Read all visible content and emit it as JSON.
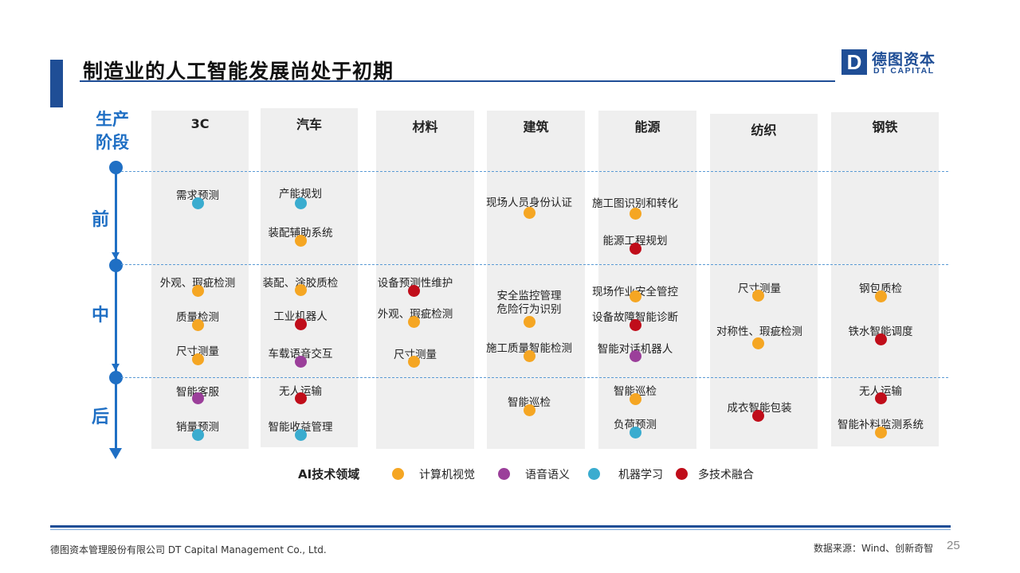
{
  "title": "制造业的人工智能发展尚处于初期",
  "logo": {
    "mark": "D",
    "cn": "德图资本",
    "en": "DT CAPITAL"
  },
  "axis": {
    "title_line1": "生产",
    "title_line2": "阶段",
    "stages": [
      "前",
      "中",
      "后"
    ]
  },
  "columns": [
    {
      "name": "3C",
      "items": [
        {
          "label": "需求预测",
          "tech": "ml",
          "stage": "前"
        },
        {
          "label": "外观、瑕疵检测",
          "tech": "cv",
          "stage": "中"
        },
        {
          "label": "质量检测",
          "tech": "cv",
          "stage": "中"
        },
        {
          "label": "尺寸测量",
          "tech": "cv",
          "stage": "中"
        },
        {
          "label": "智能客服",
          "tech": "voice",
          "stage": "后"
        },
        {
          "label": "销量预测",
          "tech": "ml",
          "stage": "后"
        }
      ]
    },
    {
      "name": "汽车",
      "items": [
        {
          "label": "产能规划",
          "tech": "ml",
          "stage": "前"
        },
        {
          "label": "装配辅助系统",
          "tech": "cv",
          "stage": "前"
        },
        {
          "label": "装配、涂胶质检",
          "tech": "cv",
          "stage": "中"
        },
        {
          "label": "工业机器人",
          "tech": "multi",
          "stage": "中"
        },
        {
          "label": "车载语音交互",
          "tech": "voice",
          "stage": "中"
        },
        {
          "label": "无人运输",
          "tech": "multi",
          "stage": "后"
        },
        {
          "label": "智能收益管理",
          "tech": "ml",
          "stage": "后"
        }
      ]
    },
    {
      "name": "材料",
      "items": [
        {
          "label": "设备预测性维护",
          "tech": "multi",
          "stage": "中"
        },
        {
          "label": "外观、瑕疵检测",
          "tech": "cv",
          "stage": "中"
        },
        {
          "label": "尺寸测量",
          "tech": "cv",
          "stage": "中"
        }
      ]
    },
    {
      "name": "建筑",
      "items": [
        {
          "label": "现场人员身份认证",
          "tech": "cv",
          "stage": "前"
        },
        {
          "label": "安全监控管理",
          "label2": "危险行为识别",
          "tech": "cv",
          "stage": "中"
        },
        {
          "label": "施工质量智能检测",
          "tech": "cv",
          "stage": "中"
        },
        {
          "label": "智能巡检",
          "tech": "cv",
          "stage": "后"
        }
      ]
    },
    {
      "name": "能源",
      "items": [
        {
          "label": "施工图识别和转化",
          "tech": "cv",
          "stage": "前"
        },
        {
          "label": "能源工程规划",
          "tech": "multi",
          "stage": "前"
        },
        {
          "label": "现场作业安全管控",
          "tech": "cv",
          "stage": "中"
        },
        {
          "label": "设备故障智能诊断",
          "tech": "multi",
          "stage": "中"
        },
        {
          "label": "智能对话机器人",
          "tech": "voice",
          "stage": "中"
        },
        {
          "label": "智能巡检",
          "tech": "cv",
          "stage": "后"
        },
        {
          "label": "负荷预测",
          "tech": "ml",
          "stage": "后"
        }
      ]
    },
    {
      "name": "纺织",
      "items": [
        {
          "label": "尺寸测量",
          "tech": "cv",
          "stage": "中"
        },
        {
          "label": "对称性、瑕疵检测",
          "tech": "cv",
          "stage": "中"
        },
        {
          "label": "成衣智能包装",
          "tech": "multi",
          "stage": "后"
        }
      ]
    },
    {
      "name": "钢铁",
      "items": [
        {
          "label": "钢包质检",
          "tech": "cv",
          "stage": "中"
        },
        {
          "label": "铁水智能调度",
          "tech": "multi",
          "stage": "中"
        },
        {
          "label": "无人运输",
          "tech": "multi",
          "stage": "后"
        },
        {
          "label": "智能补料监测系统",
          "tech": "cv",
          "stage": "后"
        }
      ]
    }
  ],
  "legend": {
    "title": "AI技术领域",
    "items": [
      {
        "key": "cv",
        "label": "计算机视觉",
        "color": "#f5a623"
      },
      {
        "key": "voice",
        "label": "语音语义",
        "color": "#9b3f9a"
      },
      {
        "key": "ml",
        "label": "机器学习",
        "color": "#3aaccf"
      },
      {
        "key": "multi",
        "label": "多技术融合",
        "color": "#c00d1a"
      }
    ]
  },
  "footer": {
    "company": "德图资本管理股份有限公司  DT Capital Management  Co., Ltd.",
    "source": "数据来源：Wind、创新奇智",
    "page": "25"
  }
}
